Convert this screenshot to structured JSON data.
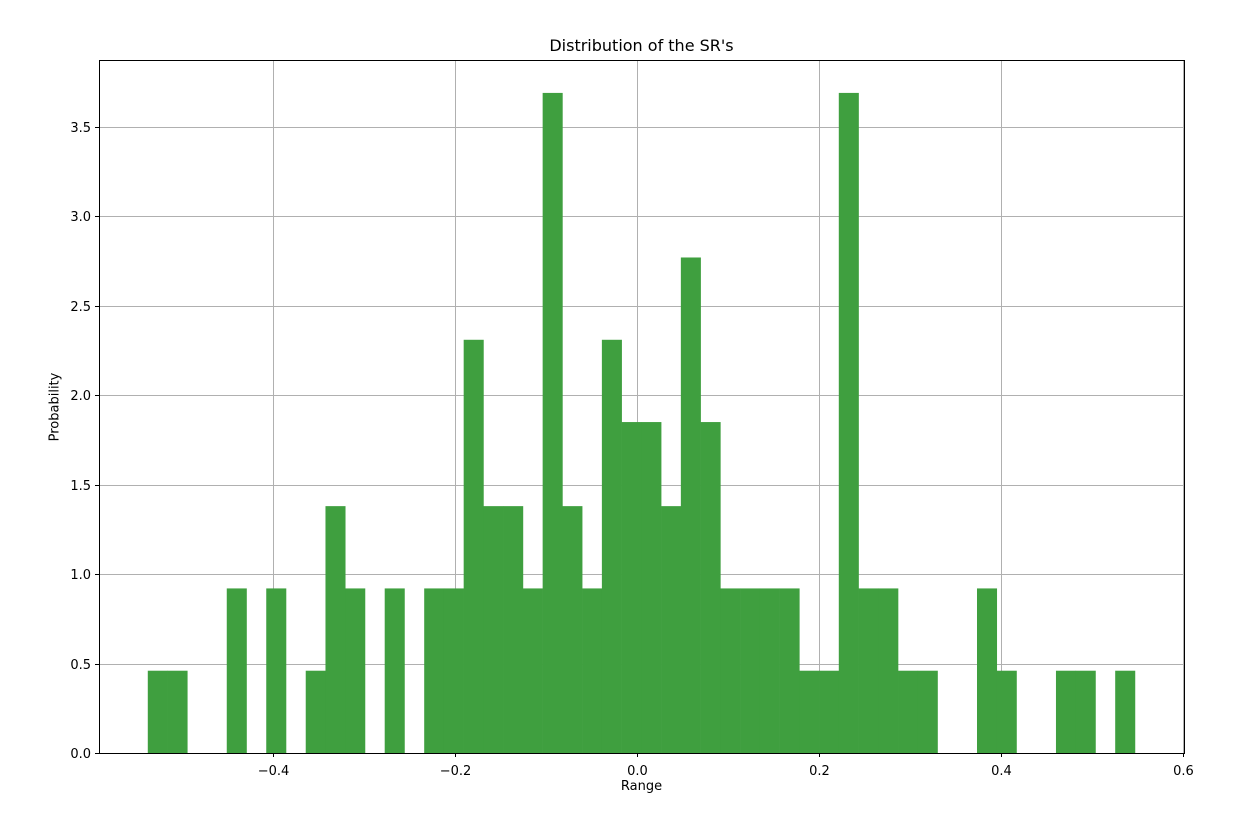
{
  "chart_data": {
    "type": "bar",
    "subtype": "histogram",
    "title": "Distribution of the SR's",
    "xlabel": "Range",
    "ylabel": "Probability",
    "xlim": [
      -0.591,
      0.601
    ],
    "ylim": [
      0.0,
      3.874
    ],
    "grid": true,
    "bar_color": "#3f9f3f",
    "x_ticks": [
      -0.4,
      -0.2,
      0.0,
      0.2,
      0.4,
      0.6
    ],
    "x_tick_labels": [
      "−0.4",
      "−0.2",
      "0.0",
      "0.2",
      "0.4",
      "0.6"
    ],
    "y_ticks": [
      0.0,
      0.5,
      1.0,
      1.5,
      2.0,
      2.5,
      3.0,
      3.5
    ],
    "y_tick_labels": [
      "0.0",
      "0.5",
      "1.0",
      "1.5",
      "2.0",
      "2.5",
      "3.0",
      "3.5"
    ],
    "bin_start": -0.5374,
    "bin_width": 0.02169,
    "values": [
      0.46,
      0.46,
      0,
      0,
      0.92,
      0,
      0.92,
      0,
      0.46,
      1.38,
      0.92,
      0,
      0.92,
      0,
      0.92,
      0.92,
      2.31,
      1.38,
      1.38,
      0.92,
      3.69,
      1.38,
      0.92,
      2.31,
      1.85,
      1.85,
      1.38,
      2.77,
      1.85,
      0.92,
      0.92,
      0.92,
      0.92,
      0.46,
      0.46,
      3.69,
      0.92,
      0.92,
      0.46,
      0.46,
      0,
      0,
      0.92,
      0.46,
      0,
      0,
      0.46,
      0.46,
      0,
      0.46
    ]
  }
}
